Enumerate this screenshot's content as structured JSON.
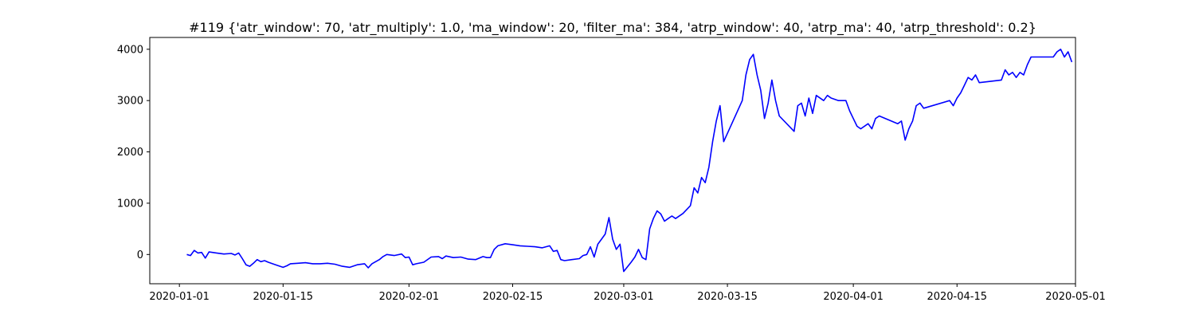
{
  "chart_data": {
    "type": "line",
    "title": "#119 {'atr_window': 70, 'atr_multiply': 1.0, 'ma_window': 20, 'filter_ma': 384, 'atrp_window': 40, 'atrp_ma': 40, 'atrp_threshold': 0.2}",
    "xlabel": "",
    "ylabel": "",
    "x_is_date": true,
    "xlim": [
      "2019-12-28",
      "2020-05-01"
    ],
    "ylim": [
      -570,
      4230
    ],
    "x_ticks": [
      "2020-01-01",
      "2020-01-15",
      "2020-02-01",
      "2020-02-15",
      "2020-03-01",
      "2020-03-15",
      "2020-04-01",
      "2020-04-15",
      "2020-05-01"
    ],
    "y_ticks": [
      0,
      1000,
      2000,
      3000,
      4000
    ],
    "grid": false,
    "legend": "none",
    "series": [
      {
        "name": "",
        "color": "#0000ff",
        "points": [
          [
            "2020-01-02",
            0
          ],
          [
            "2020-01-02T12",
            -20
          ],
          [
            "2020-01-03",
            80
          ],
          [
            "2020-01-03T12",
            30
          ],
          [
            "2020-01-04",
            40
          ],
          [
            "2020-01-04T12",
            -70
          ],
          [
            "2020-01-05",
            50
          ],
          [
            "2020-01-06",
            30
          ],
          [
            "2020-01-07",
            10
          ],
          [
            "2020-01-08",
            20
          ],
          [
            "2020-01-08T12",
            -10
          ],
          [
            "2020-01-09",
            30
          ],
          [
            "2020-01-09T12",
            -80
          ],
          [
            "2020-01-10",
            -200
          ],
          [
            "2020-01-10T12",
            -230
          ],
          [
            "2020-01-11",
            -170
          ],
          [
            "2020-01-11T12",
            -100
          ],
          [
            "2020-01-12",
            -140
          ],
          [
            "2020-01-12T12",
            -120
          ],
          [
            "2020-01-13",
            -150
          ],
          [
            "2020-01-14",
            -200
          ],
          [
            "2020-01-15",
            -250
          ],
          [
            "2020-01-15T12",
            -220
          ],
          [
            "2020-01-16",
            -180
          ],
          [
            "2020-01-17",
            -170
          ],
          [
            "2020-01-18",
            -160
          ],
          [
            "2020-01-19",
            -180
          ],
          [
            "2020-01-20",
            -180
          ],
          [
            "2020-01-21",
            -170
          ],
          [
            "2020-01-22",
            -190
          ],
          [
            "2020-01-23",
            -230
          ],
          [
            "2020-01-24",
            -250
          ],
          [
            "2020-01-25",
            -200
          ],
          [
            "2020-01-26",
            -180
          ],
          [
            "2020-01-26T12",
            -260
          ],
          [
            "2020-01-27",
            -180
          ],
          [
            "2020-01-28",
            -100
          ],
          [
            "2020-01-28T12",
            -40
          ],
          [
            "2020-01-29",
            0
          ],
          [
            "2020-01-30",
            -20
          ],
          [
            "2020-01-31",
            10
          ],
          [
            "2020-01-31T12",
            -60
          ],
          [
            "2020-02-01",
            -50
          ],
          [
            "2020-02-01T12",
            -200
          ],
          [
            "2020-02-02",
            -180
          ],
          [
            "2020-02-03",
            -150
          ],
          [
            "2020-02-04",
            -50
          ],
          [
            "2020-02-05",
            -40
          ],
          [
            "2020-02-05T12",
            -80
          ],
          [
            "2020-02-06",
            -30
          ],
          [
            "2020-02-07",
            -60
          ],
          [
            "2020-02-08",
            -50
          ],
          [
            "2020-02-09",
            -90
          ],
          [
            "2020-02-10",
            -100
          ],
          [
            "2020-02-11",
            -40
          ],
          [
            "2020-02-11T12",
            -60
          ],
          [
            "2020-02-12",
            -60
          ],
          [
            "2020-02-12T12",
            100
          ],
          [
            "2020-02-13",
            170
          ],
          [
            "2020-02-14",
            210
          ],
          [
            "2020-02-15",
            190
          ],
          [
            "2020-02-16",
            170
          ],
          [
            "2020-02-17",
            160
          ],
          [
            "2020-02-18",
            150
          ],
          [
            "2020-02-19",
            130
          ],
          [
            "2020-02-20",
            170
          ],
          [
            "2020-02-20T12",
            60
          ],
          [
            "2020-02-21",
            80
          ],
          [
            "2020-02-21T12",
            -100
          ],
          [
            "2020-02-22",
            -120
          ],
          [
            "2020-02-23",
            -100
          ],
          [
            "2020-02-24",
            -80
          ],
          [
            "2020-02-24T12",
            -20
          ],
          [
            "2020-02-25",
            0
          ],
          [
            "2020-02-25T12",
            150
          ],
          [
            "2020-02-26",
            -50
          ],
          [
            "2020-02-26T12",
            200
          ],
          [
            "2020-02-27",
            300
          ],
          [
            "2020-02-27T12",
            400
          ],
          [
            "2020-02-28",
            720
          ],
          [
            "2020-02-28T12",
            300
          ],
          [
            "2020-02-29",
            100
          ],
          [
            "2020-02-29T12",
            200
          ],
          [
            "2020-03-01",
            -330
          ],
          [
            "2020-03-02",
            -150
          ],
          [
            "2020-03-02T12",
            -50
          ],
          [
            "2020-03-03",
            100
          ],
          [
            "2020-03-03T12",
            -60
          ],
          [
            "2020-03-04",
            -100
          ],
          [
            "2020-03-04T12",
            500
          ],
          [
            "2020-03-05",
            700
          ],
          [
            "2020-03-05T12",
            850
          ],
          [
            "2020-03-06",
            790
          ],
          [
            "2020-03-06T12",
            650
          ],
          [
            "2020-03-07",
            700
          ],
          [
            "2020-03-07T12",
            750
          ],
          [
            "2020-03-08",
            700
          ],
          [
            "2020-03-09",
            800
          ],
          [
            "2020-03-10",
            950
          ],
          [
            "2020-03-10T12",
            1300
          ],
          [
            "2020-03-11",
            1200
          ],
          [
            "2020-03-11T12",
            1500
          ],
          [
            "2020-03-12",
            1400
          ],
          [
            "2020-03-12T12",
            1700
          ],
          [
            "2020-03-13",
            2200
          ],
          [
            "2020-03-13T12",
            2600
          ],
          [
            "2020-03-14",
            2900
          ],
          [
            "2020-03-14T12",
            2200
          ],
          [
            "2020-03-17",
            3000
          ],
          [
            "2020-03-17T12",
            3500
          ],
          [
            "2020-03-18",
            3800
          ],
          [
            "2020-03-18T12",
            3900
          ],
          [
            "2020-03-19",
            3500
          ],
          [
            "2020-03-19T12",
            3200
          ],
          [
            "2020-03-20",
            2650
          ],
          [
            "2020-03-20T12",
            2950
          ],
          [
            "2020-03-21",
            3400
          ],
          [
            "2020-03-21T12",
            3000
          ],
          [
            "2020-03-22",
            2700
          ],
          [
            "2020-03-24",
            2400
          ],
          [
            "2020-03-24T12",
            2900
          ],
          [
            "2020-03-25",
            2950
          ],
          [
            "2020-03-25T12",
            2700
          ],
          [
            "2020-03-26",
            3050
          ],
          [
            "2020-03-26T12",
            2750
          ],
          [
            "2020-03-27",
            3100
          ],
          [
            "2020-03-28",
            3000
          ],
          [
            "2020-03-28T12",
            3100
          ],
          [
            "2020-03-29",
            3050
          ],
          [
            "2020-03-30",
            3000
          ],
          [
            "2020-03-31",
            3000
          ],
          [
            "2020-03-31T12",
            2800
          ],
          [
            "2020-04-01",
            2650
          ],
          [
            "2020-04-01T12",
            2500
          ],
          [
            "2020-04-02",
            2450
          ],
          [
            "2020-04-03",
            2550
          ],
          [
            "2020-04-03T12",
            2450
          ],
          [
            "2020-04-04",
            2650
          ],
          [
            "2020-04-04T12",
            2700
          ],
          [
            "2020-04-07",
            2550
          ],
          [
            "2020-04-07T12",
            2600
          ],
          [
            "2020-04-08",
            2230
          ],
          [
            "2020-04-08T12",
            2450
          ],
          [
            "2020-04-09",
            2600
          ],
          [
            "2020-04-09T12",
            2900
          ],
          [
            "2020-04-10",
            2950
          ],
          [
            "2020-04-10T12",
            2850
          ],
          [
            "2020-04-14",
            3000
          ],
          [
            "2020-04-14T12",
            2900
          ],
          [
            "2020-04-15",
            3050
          ],
          [
            "2020-04-15T12",
            3150
          ],
          [
            "2020-04-16",
            3300
          ],
          [
            "2020-04-16T12",
            3450
          ],
          [
            "2020-04-17",
            3400
          ],
          [
            "2020-04-17T12",
            3500
          ],
          [
            "2020-04-18",
            3350
          ],
          [
            "2020-04-21",
            3400
          ],
          [
            "2020-04-21T12",
            3600
          ],
          [
            "2020-04-22",
            3500
          ],
          [
            "2020-04-22T12",
            3550
          ],
          [
            "2020-04-23",
            3450
          ],
          [
            "2020-04-23T12",
            3550
          ],
          [
            "2020-04-24",
            3500
          ],
          [
            "2020-04-24T12",
            3700
          ],
          [
            "2020-04-25",
            3850
          ],
          [
            "2020-04-28",
            3850
          ],
          [
            "2020-04-28T12",
            3950
          ],
          [
            "2020-04-29",
            4000
          ],
          [
            "2020-04-29T12",
            3850
          ],
          [
            "2020-04-30",
            3950
          ],
          [
            "2020-04-30T12",
            3750
          ]
        ]
      }
    ]
  }
}
